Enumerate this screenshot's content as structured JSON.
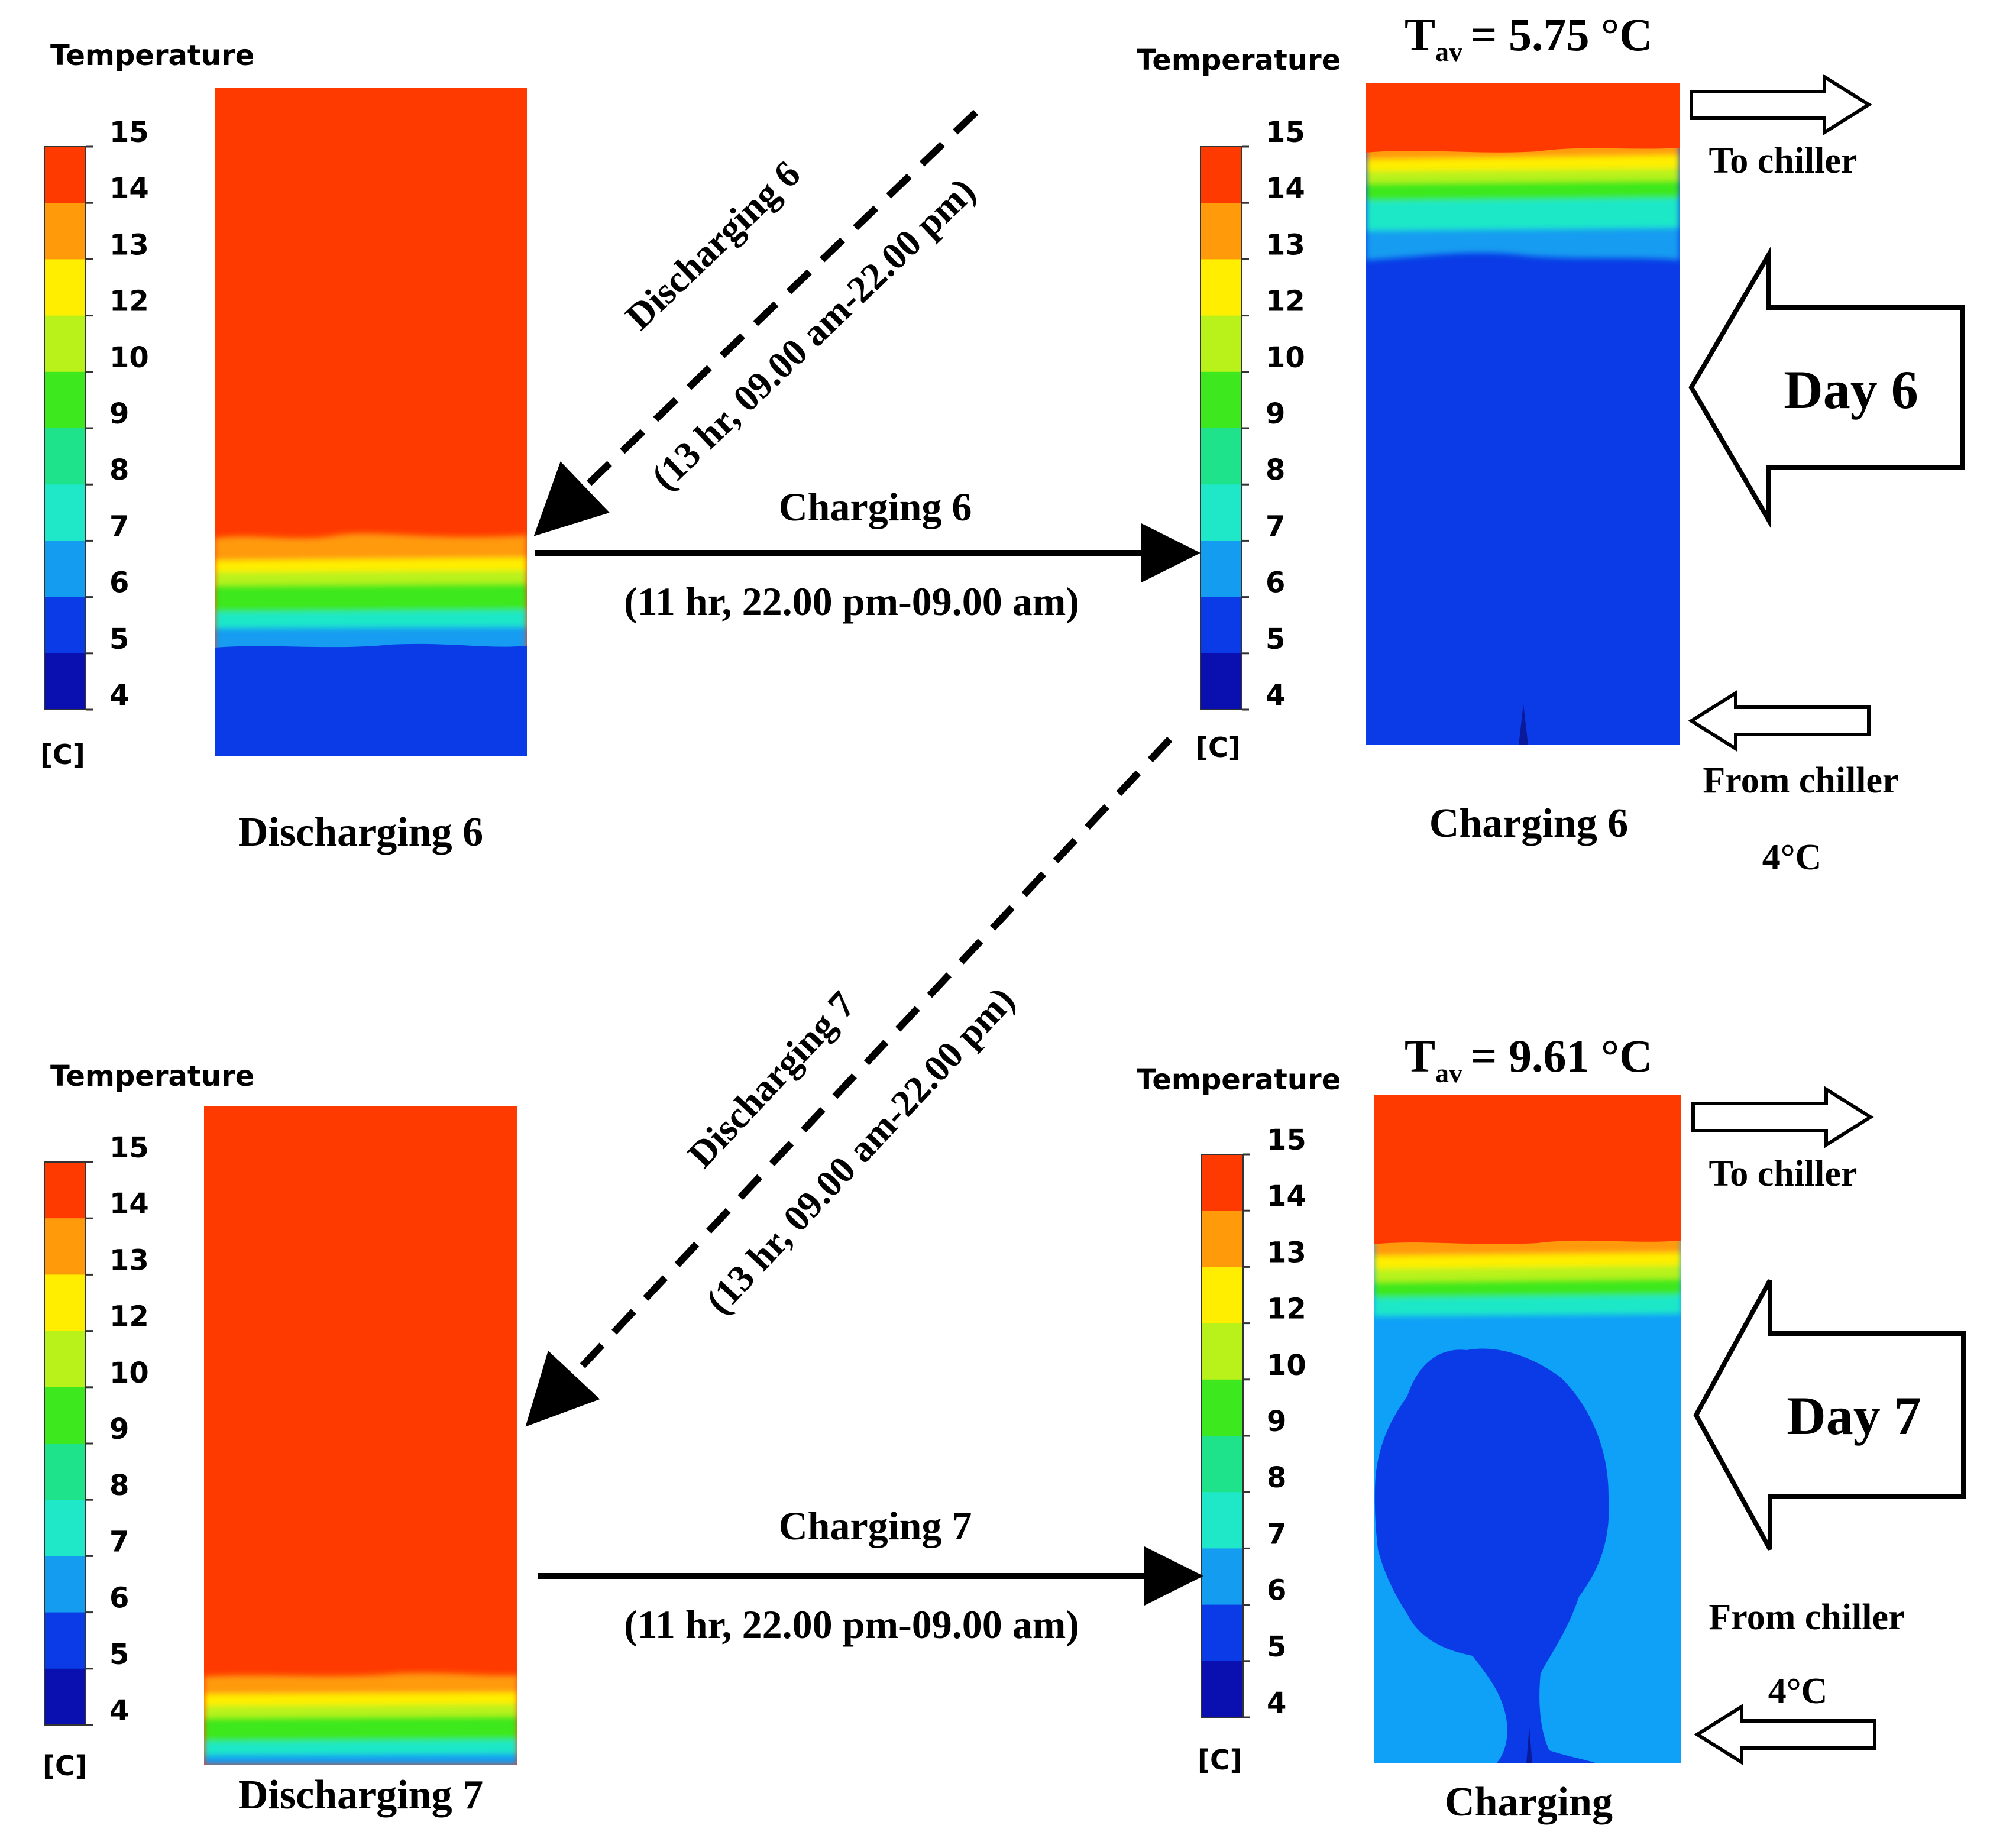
{
  "colorbar": {
    "title": "Temperature",
    "unit": "[C]",
    "ticks": [
      "15",
      "14",
      "13",
      "12",
      "10",
      "9",
      "8",
      "7",
      "6",
      "5",
      "4"
    ],
    "band_colors": [
      "#ff3a00",
      "#ff9a0a",
      "#ffee00",
      "#b8f21a",
      "#3de81e",
      "#1ee38a",
      "#1ee8c8",
      "#149cf0",
      "#0a3be6",
      "#0a0fb0"
    ]
  },
  "palette": {
    "hot": "#ff3a00",
    "orange": "#ff9a0a",
    "yellow": "#ffee00",
    "lime": "#b8f21a",
    "green": "#3de81e",
    "cyan": "#1ee8c8",
    "sky": "#149cf0",
    "blue": "#0a3be6",
    "light_blue": "#0fa0f8"
  },
  "panels": {
    "discharging6": {
      "caption": "Discharging 6"
    },
    "charging6": {
      "caption": "Charging 6",
      "tav_prefix": "T",
      "tav_sub": "av",
      "tav_value": "= 5.75 °C"
    },
    "discharging7": {
      "caption": "Discharging 7"
    },
    "charging7": {
      "caption": "Charging",
      "tav_prefix": "T",
      "tav_sub": "av",
      "tav_value": "= 9.61 °C"
    }
  },
  "flows": {
    "charge6": {
      "label": "Charging 6",
      "duration": "(11 hr, 22.00 pm-09.00 am)"
    },
    "charge7": {
      "label": "Charging 7",
      "duration": "(11 hr, 22.00 pm-09.00 am)"
    },
    "discharge6": {
      "label": "Discharging 6",
      "duration": "(13 hr, 09.00 am-22.00 pm)"
    },
    "discharge7": {
      "label": "Discharging 7",
      "duration": "(13 hr, 09.00 am-22.00 pm)"
    }
  },
  "chiller": {
    "to": "To chiller",
    "from": "From chiller",
    "inlet_temp": "4°C"
  },
  "days": {
    "day6": "Day 6",
    "day7": "Day 7"
  }
}
